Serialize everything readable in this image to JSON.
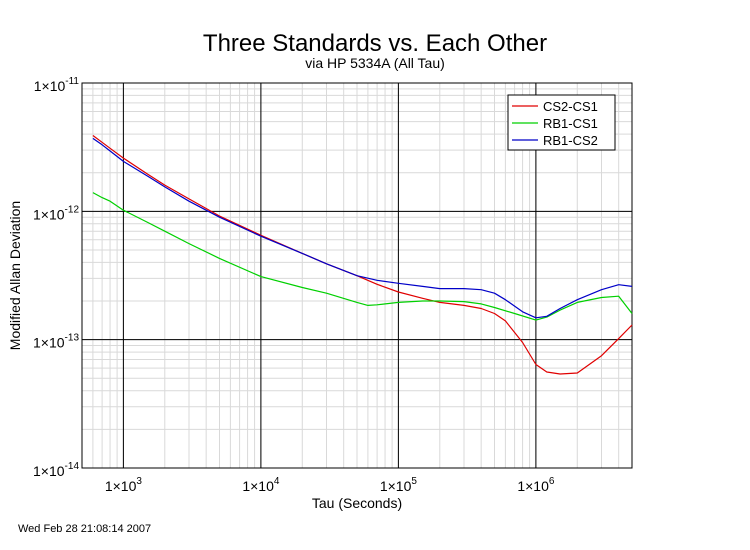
{
  "chart_data": {
    "type": "line",
    "title": "Three Standards vs. Each Other",
    "subtitle": "via HP 5334A (All Tau)",
    "xlabel": "Tau (Seconds)",
    "ylabel": "Modified Allan Deviation",
    "x_scale": "log",
    "y_scale": "log",
    "xlim": [
      500,
      5000000
    ],
    "ylim": [
      1e-14,
      1e-11
    ],
    "x_ticks": [
      {
        "value": 1000,
        "base": "1×10",
        "exp": "3"
      },
      {
        "value": 10000,
        "base": "1×10",
        "exp": "4"
      },
      {
        "value": 100000,
        "base": "1×10",
        "exp": "5"
      },
      {
        "value": 1000000,
        "base": "1×10",
        "exp": "6"
      }
    ],
    "y_ticks": [
      {
        "value": 1e-14,
        "base": "1×10",
        "exp": "-14"
      },
      {
        "value": 1e-13,
        "base": "1×10",
        "exp": "-13"
      },
      {
        "value": 1e-12,
        "base": "1×10",
        "exp": "-12"
      },
      {
        "value": 1e-11,
        "base": "1×10",
        "exp": "-11"
      }
    ],
    "grid": true,
    "legend_position": "top-right",
    "series": [
      {
        "name": "CS2-CS1",
        "color": "#e00000",
        "x": [
          600,
          700,
          800,
          1000,
          1500,
          2000,
          3000,
          5000,
          10000,
          20000,
          30000,
          50000,
          70000,
          100000,
          150000,
          200000,
          300000,
          400000,
          500000,
          600000,
          800000,
          1000000,
          1200000,
          1500000,
          2000000,
          3000000,
          4000000,
          5000000
        ],
        "y": [
          3.9e-12,
          3.45e-12,
          3.1e-12,
          2.6e-12,
          1.95e-12,
          1.6e-12,
          1.25e-12,
          9.2e-13,
          6.5e-13,
          4.7e-13,
          3.9e-13,
          3.15e-13,
          2.7e-13,
          2.35e-13,
          2.1e-13,
          1.95e-13,
          1.85e-13,
          1.75e-13,
          1.6e-13,
          1.4e-13,
          9.5e-14,
          6.4e-14,
          5.6e-14,
          5.4e-14,
          5.5e-14,
          7.5e-14,
          1.02e-13,
          1.3e-13
        ]
      },
      {
        "name": "RB1-CS1",
        "color": "#00d000",
        "x": [
          600,
          700,
          800,
          1000,
          1500,
          2000,
          3000,
          5000,
          10000,
          20000,
          30000,
          50000,
          60000,
          70000,
          100000,
          150000,
          200000,
          300000,
          400000,
          500000,
          700000,
          1000000,
          1200000,
          1500000,
          2000000,
          3000000,
          4000000,
          5000000
        ],
        "y": [
          1.4e-12,
          1.28e-12,
          1.2e-12,
          1.02e-12,
          8.2e-13,
          7e-13,
          5.6e-13,
          4.3e-13,
          3.1e-13,
          2.55e-13,
          2.3e-13,
          1.95e-13,
          1.85e-13,
          1.87e-13,
          1.95e-13,
          2e-13,
          2e-13,
          1.98e-13,
          1.9e-13,
          1.78e-13,
          1.6e-13,
          1.42e-13,
          1.5e-13,
          1.7e-13,
          1.95e-13,
          2.13e-13,
          2.18e-13,
          1.6e-13
        ]
      },
      {
        "name": "RB1-CS2",
        "color": "#0000c8",
        "x": [
          600,
          700,
          800,
          1000,
          1500,
          2000,
          3000,
          5000,
          10000,
          20000,
          30000,
          50000,
          70000,
          100000,
          150000,
          200000,
          300000,
          400000,
          500000,
          600000,
          800000,
          1000000,
          1200000,
          1500000,
          2000000,
          3000000,
          4000000,
          5000000
        ],
        "y": [
          3.7e-12,
          3.3e-12,
          2.95e-12,
          2.45e-12,
          1.88e-12,
          1.55e-12,
          1.2e-12,
          9e-13,
          6.4e-13,
          4.7e-13,
          3.9e-13,
          3.15e-13,
          2.9e-13,
          2.75e-13,
          2.6e-13,
          2.5e-13,
          2.5e-13,
          2.45e-13,
          2.3e-13,
          2.05e-13,
          1.65e-13,
          1.48e-13,
          1.52e-13,
          1.75e-13,
          2.05e-13,
          2.45e-13,
          2.68e-13,
          2.6e-13
        ]
      }
    ]
  },
  "timestamp": "Wed Feb 28 21:08:14 2007"
}
